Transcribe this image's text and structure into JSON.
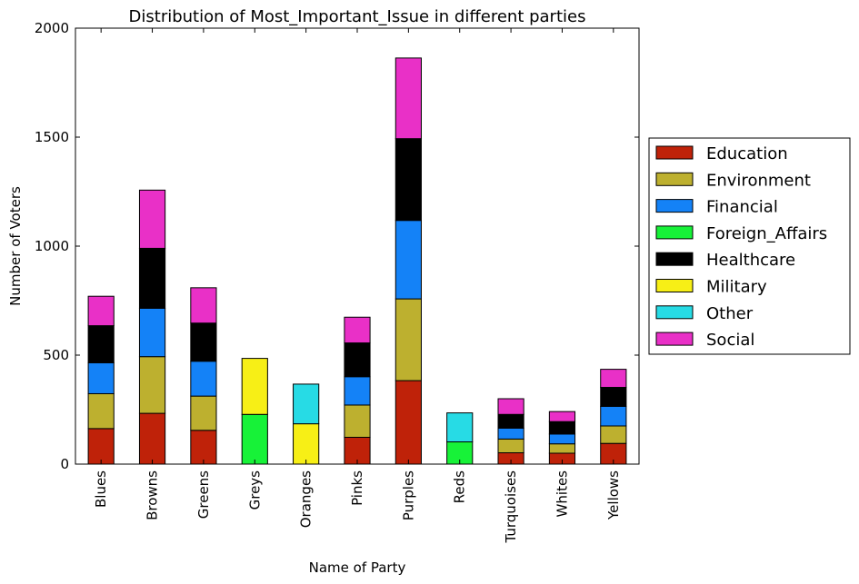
{
  "chart_data": {
    "type": "bar",
    "stacked": true,
    "title": "Distribution of Most_Important_Issue in different parties",
    "xlabel": "Name of Party",
    "ylabel": "Number of Voters",
    "ylim": [
      0,
      2000
    ],
    "yticks": [
      "0",
      "500",
      "1000",
      "1500",
      "2000"
    ],
    "legend_position": "right",
    "categories": [
      "Blues",
      "Browns",
      "Greens",
      "Greys",
      "Oranges",
      "Pinks",
      "Purples",
      "Reds",
      "Turquoises",
      "Whites",
      "Yellows"
    ],
    "series": [
      {
        "name": "Education",
        "color": "#bf2209",
        "values": [
          163,
          233,
          155,
          0,
          0,
          123,
          383,
          0,
          52,
          50,
          95
        ]
      },
      {
        "name": "Environment",
        "color": "#bdb02f",
        "values": [
          160,
          260,
          157,
          0,
          0,
          148,
          375,
          0,
          63,
          43,
          80
        ]
      },
      {
        "name": "Financial",
        "color": "#1482f7",
        "values": [
          142,
          222,
          160,
          0,
          0,
          130,
          360,
          0,
          50,
          45,
          90
        ]
      },
      {
        "name": "Foreign_Affairs",
        "color": "#17f238",
        "values": [
          0,
          0,
          0,
          228,
          0,
          0,
          0,
          102,
          0,
          0,
          0
        ]
      },
      {
        "name": "Healthcare",
        "color": "#000000",
        "values": [
          170,
          275,
          175,
          0,
          0,
          155,
          375,
          0,
          63,
          57,
          87
        ]
      },
      {
        "name": "Military",
        "color": "#f7ef16",
        "values": [
          0,
          0,
          0,
          257,
          185,
          0,
          0,
          0,
          0,
          0,
          0
        ]
      },
      {
        "name": "Other",
        "color": "#27dbe5",
        "values": [
          0,
          0,
          0,
          0,
          182,
          0,
          0,
          133,
          0,
          0,
          0
        ]
      },
      {
        "name": "Social",
        "color": "#e930c7",
        "values": [
          135,
          267,
          162,
          0,
          0,
          118,
          370,
          0,
          72,
          46,
          83
        ]
      }
    ]
  }
}
